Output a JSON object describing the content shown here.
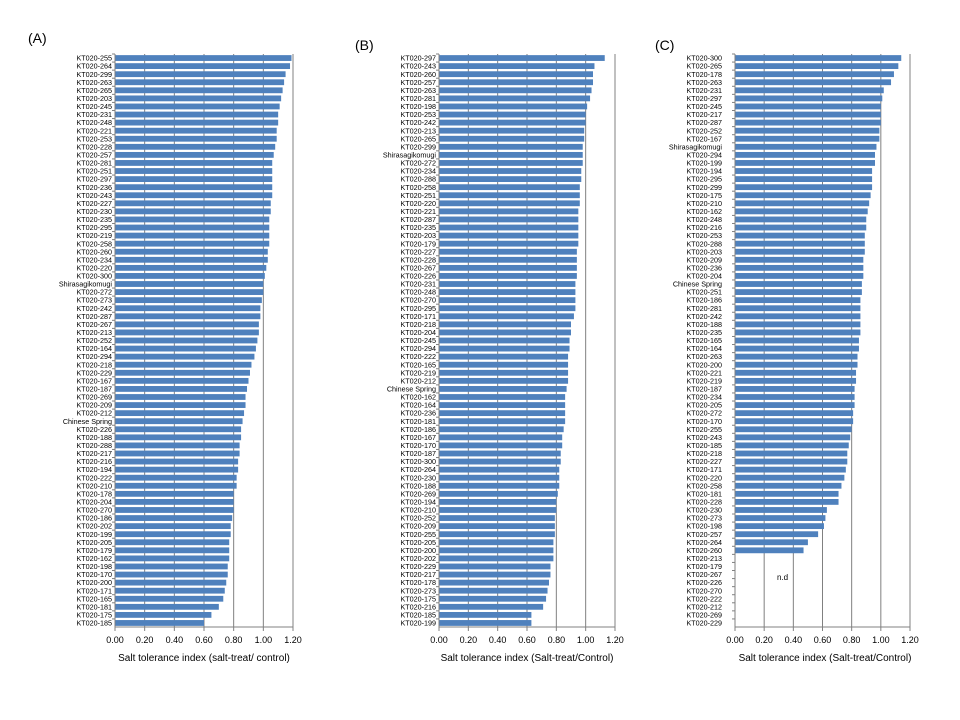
{
  "chart_data": [
    {
      "type": "bar",
      "panel_label": "(A)",
      "xlabel": "Salt tolerance index (salt-treat/  control)",
      "xlim": [
        0,
        1.2
      ],
      "xticks": [
        "0.00",
        "0.20",
        "0.40",
        "0.60",
        "0.80",
        "1.00",
        "1.20"
      ],
      "grid": "vertical",
      "color": "#4F81BD",
      "categories": [
        "KT020-255",
        "KT020-264",
        "KT020-299",
        "KT020-263",
        "KT020-265",
        "KT020-203",
        "KT020-245",
        "KT020-231",
        "KT020-248",
        "KT020-221",
        "KT020-253",
        "KT020-228",
        "KT020-257",
        "KT020-281",
        "KT020-251",
        "KT020-297",
        "KT020-236",
        "KT020-243",
        "KT020-227",
        "KT020-230",
        "KT020-235",
        "KT020-295",
        "KT020-219",
        "KT020-258",
        "KT020-260",
        "KT020-234",
        "KT020-220",
        "KT020-300",
        "Shirasagikomugi",
        "KT020-272",
        "KT020-273",
        "KT020-242",
        "KT020-287",
        "KT020-267",
        "KT020-213",
        "KT020-252",
        "KT020-164",
        "KT020-294",
        "KT020-218",
        "KT020-229",
        "KT020-167",
        "KT020-187",
        "KT020-269",
        "KT020-209",
        "KT020-212",
        "Chinese Spring",
        "KT020-226",
        "KT020-188",
        "KT020-288",
        "KT020-217",
        "KT020-216",
        "KT020-194",
        "KT020-222",
        "KT020-210",
        "KT020-178",
        "KT020-204",
        "KT020-270",
        "KT020-186",
        "KT020-202",
        "KT020-199",
        "KT020-205",
        "KT020-179",
        "KT020-162",
        "KT020-198",
        "KT020-170",
        "KT020-200",
        "KT020-171",
        "KT020-165",
        "KT020-181",
        "KT020-175",
        "KT020-185"
      ],
      "values": [
        1.19,
        1.18,
        1.15,
        1.14,
        1.13,
        1.12,
        1.11,
        1.1,
        1.1,
        1.09,
        1.09,
        1.08,
        1.07,
        1.06,
        1.06,
        1.06,
        1.06,
        1.06,
        1.05,
        1.05,
        1.04,
        1.04,
        1.04,
        1.04,
        1.03,
        1.03,
        1.02,
        1.01,
        1.0,
        1.0,
        0.99,
        0.98,
        0.98,
        0.97,
        0.97,
        0.96,
        0.95,
        0.94,
        0.92,
        0.91,
        0.9,
        0.89,
        0.88,
        0.88,
        0.87,
        0.86,
        0.85,
        0.85,
        0.84,
        0.84,
        0.83,
        0.83,
        0.82,
        0.82,
        0.8,
        0.8,
        0.8,
        0.79,
        0.78,
        0.78,
        0.77,
        0.77,
        0.77,
        0.76,
        0.76,
        0.75,
        0.74,
        0.73,
        0.7,
        0.65,
        0.6
      ]
    },
    {
      "type": "bar",
      "panel_label": "(B)",
      "xlabel": "Salt tolerance index  (Salt-treat/Control)",
      "xlim": [
        0,
        1.2
      ],
      "xticks": [
        "0.00",
        "0.20",
        "0.40",
        "0.60",
        "0.80",
        "1.00",
        "1.20"
      ],
      "grid": "vertical",
      "color": "#4F81BD",
      "categories": [
        "KT020-297",
        "KT020-243",
        "KT020-260",
        "KT020-257",
        "KT020-263",
        "KT020-281",
        "KT020-198",
        "KT020-253",
        "KT020-242",
        "KT020-213",
        "KT020-265",
        "KT020-299",
        "Shirasagikomugi",
        "KT020-272",
        "KT020-234",
        "KT020-288",
        "KT020-258",
        "KT020-251",
        "KT020-220",
        "KT020-221",
        "KT020-287",
        "KT020-235",
        "KT020-203",
        "KT020-179",
        "KT020-227",
        "KT020-228",
        "KT020-267",
        "KT020-226",
        "KT020-231",
        "KT020-248",
        "KT020-270",
        "KT020-295",
        "KT020-171",
        "KT020-218",
        "KT020-204",
        "KT020-245",
        "KT020-294",
        "KT020-222",
        "KT020-165",
        "KT020-219",
        "KT020-212",
        "Chinese Spring",
        "KT020-162",
        "KT020-164",
        "KT020-236",
        "KT020-181",
        "KT020-186",
        "KT020-167",
        "KT020-170",
        "KT020-187",
        "KT020-300",
        "KT020-264",
        "KT020-230",
        "KT020-188",
        "KT020-269",
        "KT020-194",
        "KT020-210",
        "KT020-252",
        "KT020-209",
        "KT020-255",
        "KT020-205",
        "KT020-200",
        "KT020-202",
        "KT020-229",
        "KT020-217",
        "KT020-178",
        "KT020-273",
        "KT020-175",
        "KT020-216",
        "KT020-185",
        "KT020-199"
      ],
      "values": [
        1.13,
        1.06,
        1.05,
        1.05,
        1.04,
        1.03,
        1.01,
        1.0,
        1.0,
        0.99,
        0.99,
        0.98,
        0.98,
        0.98,
        0.97,
        0.97,
        0.96,
        0.96,
        0.96,
        0.95,
        0.95,
        0.95,
        0.95,
        0.95,
        0.94,
        0.94,
        0.94,
        0.94,
        0.93,
        0.93,
        0.93,
        0.93,
        0.92,
        0.9,
        0.9,
        0.89,
        0.89,
        0.88,
        0.88,
        0.88,
        0.88,
        0.87,
        0.86,
        0.86,
        0.86,
        0.86,
        0.85,
        0.84,
        0.84,
        0.83,
        0.83,
        0.82,
        0.82,
        0.82,
        0.81,
        0.8,
        0.8,
        0.79,
        0.79,
        0.79,
        0.78,
        0.78,
        0.78,
        0.76,
        0.76,
        0.75,
        0.74,
        0.73,
        0.71,
        0.63,
        0.63
      ]
    },
    {
      "type": "bar",
      "panel_label": "(C)",
      "xlabel": "Salt tolerance index  (Salt-treat/Control)",
      "xlim": [
        0,
        1.2
      ],
      "xticks": [
        "0.00",
        "0.20",
        "0.40",
        "0.60",
        "0.80",
        "1.00",
        "1.20"
      ],
      "grid": "vertical",
      "color": "#4F81BD",
      "annotation": "n.d",
      "categories": [
        "KT020-300",
        "KT020-265",
        "KT020-178",
        "KT020-263",
        "KT020-231",
        "KT020-297",
        "KT020-245",
        "KT020-217",
        "KT020-287",
        "KT020-252",
        "KT020-167",
        "Shirasagikomugi",
        "KT020-294",
        "KT020-199",
        "KT020-194",
        "KT020-295",
        "KT020-299",
        "KT020-175",
        "KT020-210",
        "KT020-162",
        "KT020-248",
        "KT020-216",
        "KT020-253",
        "KT020-288",
        "KT020-203",
        "KT020-209",
        "KT020-236",
        "KT020-204",
        "Chinese Spring",
        "KT020-251",
        "KT020-186",
        "KT020-281",
        "KT020-242",
        "KT020-188",
        "KT020-235",
        "KT020-165",
        "KT020-164",
        "KT020-263",
        "KT020-200",
        "KT020-221",
        "KT020-219",
        "KT020-187",
        "KT020-234",
        "KT020-205",
        "KT020-272",
        "KT020-170",
        "KT020-255",
        "KT020-243",
        "KT020-185",
        "KT020-218",
        "KT020-227",
        "KT020-171",
        "KT020-220",
        "KT020-258",
        "KT020-181",
        "KT020-228",
        "KT020-230",
        "KT020-273",
        "KT020-198",
        "KT020-257",
        "KT020-264",
        "KT020-260",
        "KT020-213",
        "KT020-179",
        "KT020-267",
        "KT020-226",
        "KT020-270",
        "KT020-222",
        "KT020-212",
        "KT020-269",
        "KT020-229"
      ],
      "values": [
        1.14,
        1.12,
        1.09,
        1.07,
        1.02,
        1.01,
        1.0,
        1.0,
        1.0,
        0.99,
        0.99,
        0.97,
        0.96,
        0.96,
        0.94,
        0.94,
        0.94,
        0.93,
        0.92,
        0.91,
        0.9,
        0.9,
        0.89,
        0.89,
        0.89,
        0.88,
        0.88,
        0.88,
        0.87,
        0.87,
        0.86,
        0.86,
        0.86,
        0.86,
        0.86,
        0.85,
        0.85,
        0.84,
        0.84,
        0.83,
        0.83,
        0.82,
        0.82,
        0.82,
        0.81,
        0.81,
        0.8,
        0.79,
        0.78,
        0.77,
        0.77,
        0.76,
        0.75,
        0.73,
        0.71,
        0.71,
        0.63,
        0.62,
        0.61,
        0.57,
        0.5,
        0.47,
        null,
        null,
        null,
        null,
        null,
        null,
        null,
        null,
        null
      ]
    }
  ]
}
